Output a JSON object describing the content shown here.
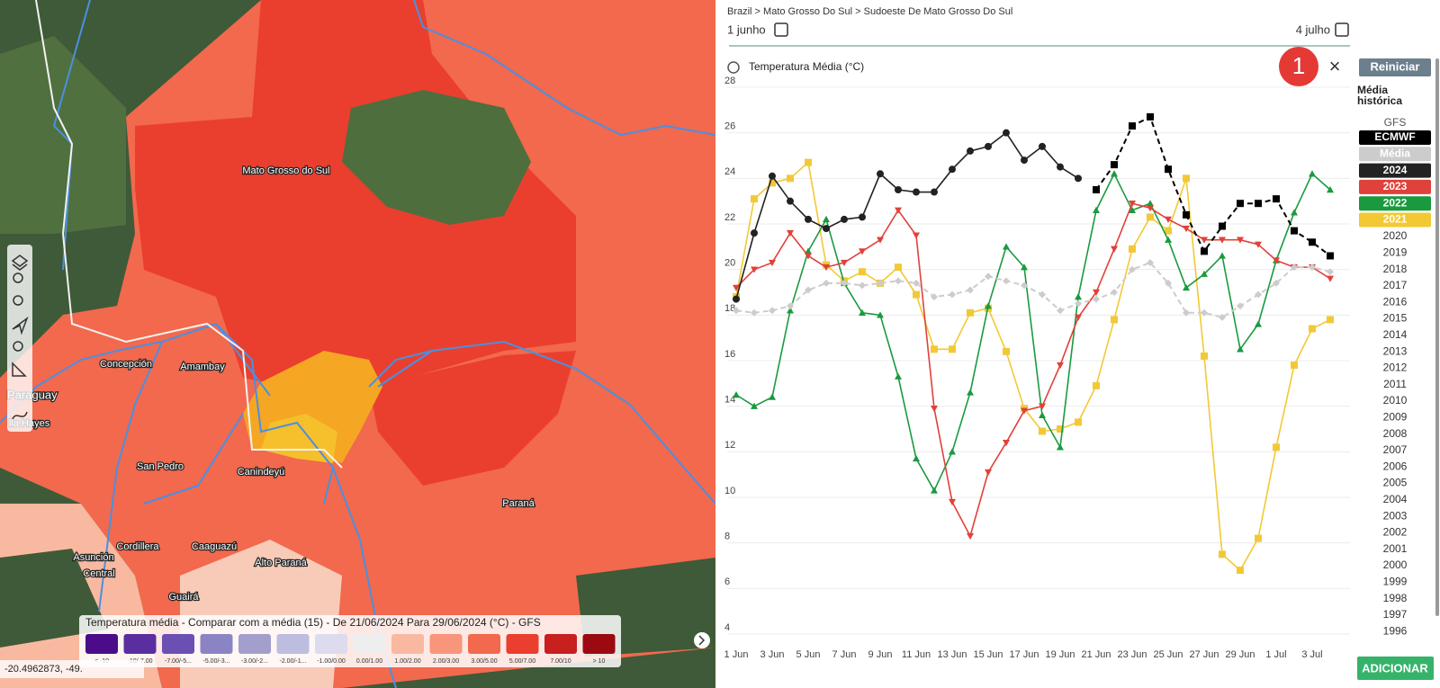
{
  "breadcrumb": "Brazil > Mato Grosso Do Sul > Sudoeste De Mato Grosso Do Sul",
  "date_start": "1 junho",
  "date_end": "4 julho",
  "badge": "1",
  "close": "×",
  "map": {
    "labels": [
      "Mato Grosso do Sul",
      "Concepción",
      "Amambay",
      "Paraguay",
      "lla Hayes",
      "San Pedro",
      "Canindeyú",
      "Paraná",
      "Cordillera",
      "Caaguazú",
      "Alto Paraná",
      "Asunción",
      "Central",
      "Guairá"
    ],
    "coordinates": "-20.4962873, -49.",
    "legend": {
      "title": "Temperatura média - Comparar com a média (15) - De 21/06/2024 Para 29/06/2024 (°C) - GFS",
      "bins": [
        {
          "label": "< -10",
          "color": "#4b0c8a"
        },
        {
          "label": "-10/-7.00",
          "color": "#5a2ea0"
        },
        {
          "label": "-7.00/-5...",
          "color": "#6c4fb3"
        },
        {
          "label": "-5.00/-3...",
          "color": "#8a84c4"
        },
        {
          "label": "-3.00/-2...",
          "color": "#a39fcc"
        },
        {
          "label": "-2.00/-1...",
          "color": "#bdbde0"
        },
        {
          "label": "-1.00/0.00",
          "color": "#dcdcee"
        },
        {
          "label": "0.00/1.00",
          "color": "#efeeee"
        },
        {
          "label": "1.00/2.00",
          "color": "#f9b9a0"
        },
        {
          "label": "2.00/3.00",
          "color": "#f8957a"
        },
        {
          "label": "3.00/5.00",
          "color": "#f2694d"
        },
        {
          "label": "5.00/7.00",
          "color": "#ea3f2e"
        },
        {
          "label": "7.00/10",
          "color": "#c81f1f"
        },
        {
          "label": "> 10",
          "color": "#9b0a10"
        }
      ]
    }
  },
  "chart_data": {
    "type": "line",
    "title": "Temperatura Média (°C)",
    "categories": [
      "1 Jun",
      null,
      "3 Jun",
      null,
      "5 Jun",
      null,
      "7 Jun",
      null,
      "9 Jun",
      null,
      "11 Jun",
      null,
      "13 Jun",
      null,
      "15 Jun",
      null,
      "17 Jun",
      null,
      "19 Jun",
      null,
      "21 Jun",
      null,
      "23 Jun",
      null,
      "25 Jun",
      null,
      "27 Jun",
      null,
      "29 Jun",
      null,
      "1 Jul",
      null,
      "3 Jul",
      null
    ],
    "ylim": [
      4,
      28
    ],
    "yticks": [
      4,
      6,
      8,
      10,
      12,
      14,
      16,
      18,
      20,
      22,
      24,
      26,
      28
    ],
    "grid": true,
    "series": [
      {
        "name": "ECMWF",
        "color": "#000000",
        "dash": true,
        "marker": "square",
        "values": [
          null,
          null,
          null,
          null,
          null,
          null,
          null,
          null,
          null,
          null,
          null,
          null,
          null,
          null,
          null,
          null,
          null,
          null,
          null,
          null,
          23.5,
          24.6,
          26.3,
          26.7,
          24.4,
          22.4,
          20.8,
          21.9,
          22.9,
          22.9,
          23.1,
          21.7,
          21.2,
          20.6
        ]
      },
      {
        "name": "Média",
        "color": "#cccccc",
        "dash": true,
        "marker": "diamond",
        "values": [
          18.2,
          18.1,
          18.2,
          18.4,
          19.1,
          19.4,
          19.4,
          19.3,
          19.4,
          19.5,
          19.4,
          18.8,
          18.9,
          19.1,
          19.7,
          19.5,
          19.3,
          18.9,
          18.2,
          18.5,
          18.7,
          19.0,
          20.0,
          20.3,
          19.4,
          18.1,
          18.1,
          17.9,
          18.4,
          18.9,
          19.4,
          20.1,
          20.1,
          19.9
        ]
      },
      {
        "name": "2024",
        "color": "#222222",
        "dash": false,
        "marker": "circle",
        "values": [
          18.7,
          21.6,
          24.1,
          23.0,
          22.2,
          21.8,
          22.2,
          22.3,
          24.2,
          23.5,
          23.4,
          23.4,
          24.4,
          25.2,
          25.4,
          26.0,
          24.8,
          25.4,
          24.5,
          24.0,
          null,
          null,
          null,
          null,
          null,
          null,
          null,
          null,
          null,
          null,
          null,
          null,
          null,
          null
        ]
      },
      {
        "name": "2023",
        "color": "#e0413a",
        "dash": false,
        "marker": "triangle-down",
        "values": [
          19.2,
          20.0,
          20.3,
          21.6,
          20.6,
          20.1,
          20.3,
          20.8,
          21.3,
          22.6,
          21.5,
          13.9,
          9.8,
          8.3,
          11.1,
          12.4,
          13.8,
          14.0,
          15.8,
          17.9,
          19.0,
          20.9,
          22.9,
          22.7,
          22.2,
          21.8,
          21.3,
          21.3,
          21.3,
          21.1,
          20.4,
          20.1,
          20.1,
          19.6
        ]
      },
      {
        "name": "2022",
        "color": "#1a9a3f",
        "dash": false,
        "marker": "triangle-up",
        "values": [
          14.5,
          14.0,
          14.4,
          18.2,
          20.8,
          22.2,
          19.4,
          18.1,
          18.0,
          15.3,
          11.7,
          10.3,
          12.0,
          14.6,
          18.4,
          21.0,
          20.1,
          13.6,
          12.2,
          18.8,
          22.6,
          24.2,
          22.6,
          22.9,
          21.3,
          19.2,
          19.8,
          20.6,
          16.5,
          17.6,
          20.4,
          22.5,
          24.2,
          23.5
        ]
      },
      {
        "name": "2021",
        "color": "#f2c935",
        "dash": false,
        "marker": "square",
        "values": [
          18.8,
          23.1,
          23.8,
          24.0,
          24.7,
          20.2,
          19.5,
          19.9,
          19.4,
          20.1,
          18.9,
          16.5,
          16.5,
          18.1,
          18.3,
          16.4,
          13.9,
          12.9,
          13.0,
          13.3,
          14.9,
          17.8,
          20.9,
          22.3,
          21.7,
          24.0,
          16.2,
          7.5,
          6.8,
          8.2,
          12.2,
          15.8,
          17.4,
          17.8
        ]
      }
    ]
  },
  "sidebar": {
    "reset": "Reiniciar",
    "history_label": "Média histórica",
    "inactive_source": "GFS",
    "other_years": [
      "2020",
      "2019",
      "2018",
      "2017",
      "2016",
      "2015",
      "2014",
      "2013",
      "2012",
      "2011",
      "2010",
      "2009",
      "2008",
      "2007",
      "2006",
      "2005",
      "2004",
      "2003",
      "2002",
      "2001",
      "2000",
      "1999",
      "1998",
      "1997",
      "1996"
    ],
    "add": "ADICIONAR"
  }
}
